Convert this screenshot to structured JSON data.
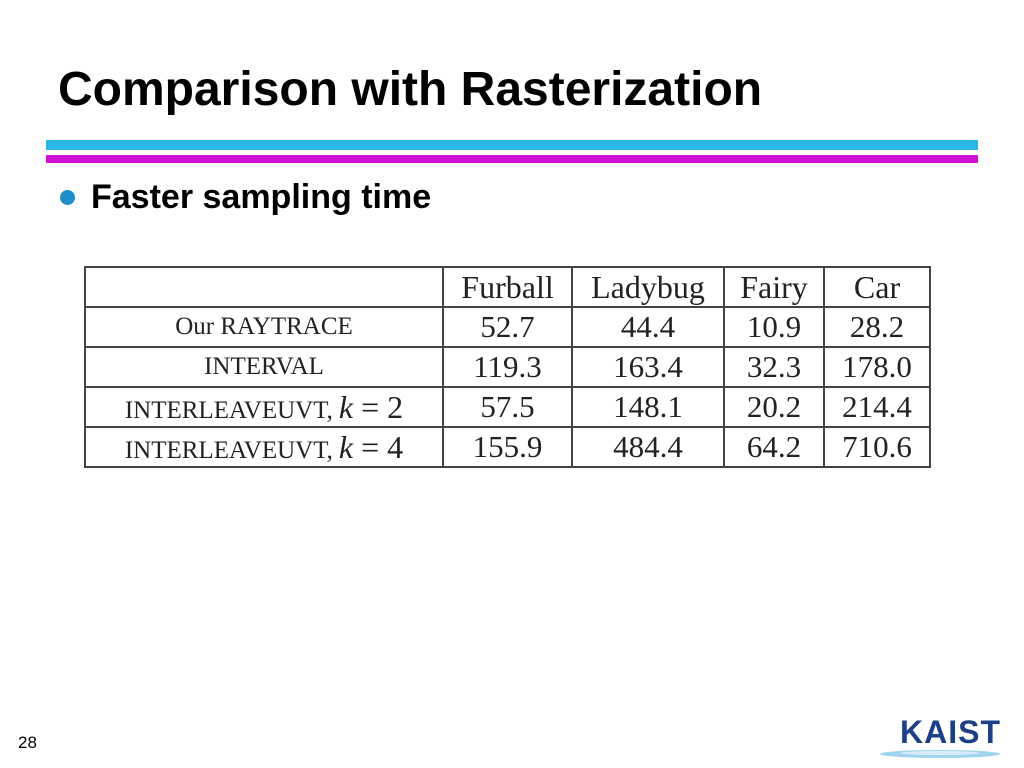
{
  "slide": {
    "title": "Comparison with Rasterization",
    "bullet": "Faster sampling time",
    "page_number": "28",
    "logo_text": "KAIST"
  },
  "table": {
    "headers": [
      "",
      "Furball",
      "Ladybug",
      "Fairy",
      "Car"
    ],
    "rows": [
      {
        "label": "Our RAYTRACE",
        "k_var": "",
        "k_eq": "",
        "k_val": "",
        "values": [
          "52.7",
          "44.4",
          "10.9",
          "28.2"
        ]
      },
      {
        "label": "INTERVAL",
        "k_var": "",
        "k_eq": "",
        "k_val": "",
        "values": [
          "119.3",
          "163.4",
          "32.3",
          "178.0"
        ]
      },
      {
        "label": "INTERLEAVEUVT,",
        "k_var": "k",
        "k_eq": "=",
        "k_val": "2",
        "values": [
          "57.5",
          "148.1",
          "20.2",
          "214.4"
        ]
      },
      {
        "label": "INTERLEAVEUVT,",
        "k_var": "k",
        "k_eq": "=",
        "k_val": "4",
        "values": [
          "155.9",
          "484.4",
          "64.2",
          "710.6"
        ]
      }
    ]
  },
  "colors": {
    "rule_cyan": "#2ab7e6",
    "rule_magenta": "#cc10d6",
    "bullet": "#1f8ec8",
    "logo": "#1d3f86"
  }
}
